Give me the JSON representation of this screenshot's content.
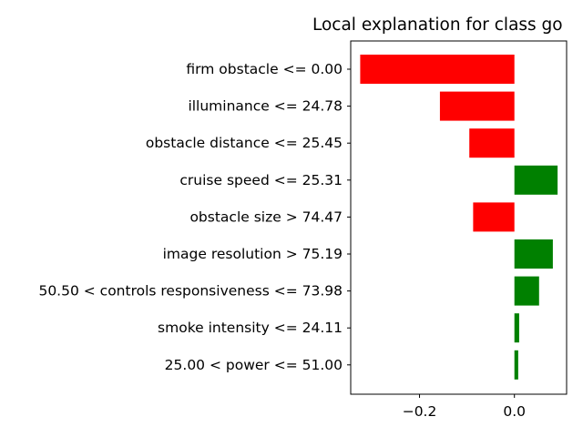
{
  "chart_data": {
    "type": "bar",
    "orientation": "horizontal",
    "title": "Local explanation for class go",
    "xlabel": "",
    "ylabel": "",
    "xlim": [
      -0.345,
      0.11
    ],
    "xticks": [
      -0.2,
      0.0
    ],
    "xtick_labels": [
      "−0.2",
      "0.0"
    ],
    "grid": false,
    "categories": [
      "firm obstacle <= 0.00",
      "illuminance <= 24.78",
      "obstacle distance <= 25.45",
      "cruise speed <= 25.31",
      "obstacle size > 74.47",
      "image resolution > 75.19",
      "50.50 < controls responsiveness <= 73.98",
      "smoke intensity <= 24.11",
      "25.00 < power <= 51.00"
    ],
    "values": [
      -0.325,
      -0.157,
      -0.095,
      0.091,
      -0.087,
      0.081,
      0.052,
      0.01,
      0.008
    ],
    "colors": {
      "positive": "#008000",
      "negative": "#ff0000",
      "axis": "#000000"
    }
  }
}
